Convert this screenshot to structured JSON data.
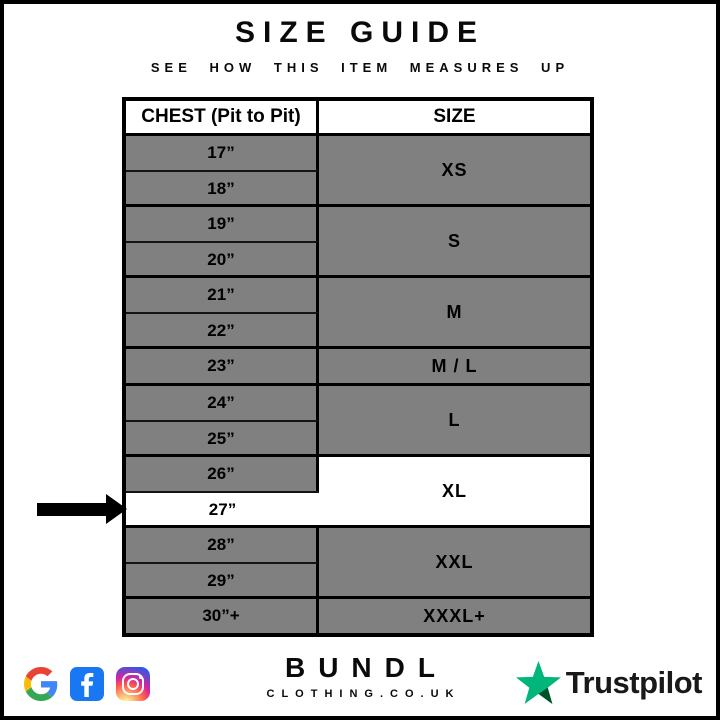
{
  "header": {
    "title": "SIZE GUIDE",
    "subtitle": "SEE HOW THIS ITEM MEASURES UP"
  },
  "table": {
    "chest_header": "CHEST (Pit to Pit)",
    "size_header": "SIZE",
    "groups": [
      {
        "size": "XS",
        "shaded": true,
        "rows": [
          {
            "chest": "17”",
            "shaded": true
          },
          {
            "chest": "18”",
            "shaded": true
          }
        ]
      },
      {
        "size": "S",
        "shaded": true,
        "rows": [
          {
            "chest": "19”",
            "shaded": true
          },
          {
            "chest": "20”",
            "shaded": true
          }
        ]
      },
      {
        "size": "M",
        "shaded": true,
        "rows": [
          {
            "chest": "21”",
            "shaded": true
          },
          {
            "chest": "22”",
            "shaded": true
          }
        ]
      },
      {
        "size": "M / L",
        "shaded": true,
        "rows": [
          {
            "chest": "23”",
            "shaded": true
          }
        ]
      },
      {
        "size": "L",
        "shaded": true,
        "rows": [
          {
            "chest": "24”",
            "shaded": true
          },
          {
            "chest": "25”",
            "shaded": true
          }
        ]
      },
      {
        "size": "XL",
        "shaded": false,
        "rows": [
          {
            "chest": "26”",
            "shaded": true
          },
          {
            "chest": "27”",
            "shaded": false,
            "arrow": true
          }
        ]
      },
      {
        "size": "XXL",
        "shaded": true,
        "rows": [
          {
            "chest": "28”",
            "shaded": true
          },
          {
            "chest": "29”",
            "shaded": true
          }
        ]
      },
      {
        "size": "XXXL+",
        "shaded": true,
        "rows": [
          {
            "chest": "30”+",
            "shaded": true
          }
        ]
      }
    ]
  },
  "chart_data": {
    "type": "table",
    "columns": [
      "CHEST (Pit to Pit)",
      "SIZE"
    ],
    "rows": [
      [
        "17”",
        "XS"
      ],
      [
        "18”",
        "XS"
      ],
      [
        "19”",
        "S"
      ],
      [
        "20”",
        "S"
      ],
      [
        "21”",
        "M"
      ],
      [
        "22”",
        "M"
      ],
      [
        "23”",
        "M / L"
      ],
      [
        "24”",
        "L"
      ],
      [
        "25”",
        "L"
      ],
      [
        "26”",
        "XL"
      ],
      [
        "27”",
        "XL"
      ],
      [
        "28”",
        "XXL"
      ],
      [
        "29”",
        "XXL"
      ],
      [
        "30”+",
        "XXXL+"
      ]
    ],
    "highlighted_row": [
      "27”",
      "XL"
    ]
  },
  "footer": {
    "brand_name": "BUNDL",
    "brand_domain": "CLOTHING.CO.UK",
    "trustpilot_label": "Trustpilot",
    "social_icons": [
      "google-icon",
      "facebook-icon",
      "instagram-icon"
    ]
  },
  "colors": {
    "row_gray": "#808080",
    "trustpilot_green": "#00B67A",
    "trustpilot_dark_green": "#005128",
    "facebook_blue": "#1877F2",
    "google_blue": "#4285F4",
    "google_red": "#EA4335",
    "google_yellow": "#FBBC05",
    "google_green": "#34A853"
  }
}
